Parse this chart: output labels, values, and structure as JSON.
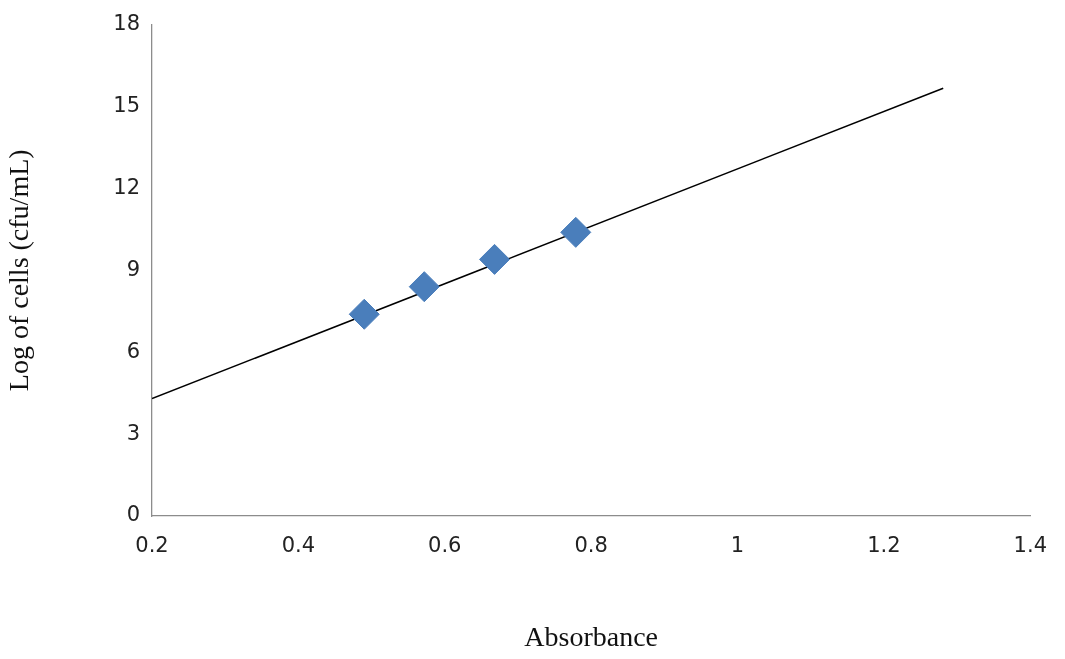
{
  "chart_data": {
    "type": "scatter",
    "xlabel": "Absorbance",
    "ylabel": "Log of cells (cfu/mL)",
    "xlim": [
      0.2,
      1.4
    ],
    "xticks": [
      0.2,
      0.4,
      0.6,
      0.8,
      1,
      1.2,
      1.4
    ],
    "ylim": [
      0,
      18
    ],
    "yticks": [
      0,
      3,
      6,
      9,
      12,
      15,
      18
    ],
    "series": [
      {
        "type": "scatter",
        "color": "#4a7ebb",
        "marker": "diamond",
        "x": [
          0.49,
          0.572,
          0.668,
          0.779
        ],
        "values": [
          7.39,
          8.4,
          9.4,
          10.39
        ]
      },
      {
        "type": "line",
        "color": "#000000",
        "marker": "none",
        "line_style": "solid",
        "x": [
          0.2,
          1.281
        ],
        "values": [
          4.3,
          15.67
        ]
      }
    ]
  }
}
